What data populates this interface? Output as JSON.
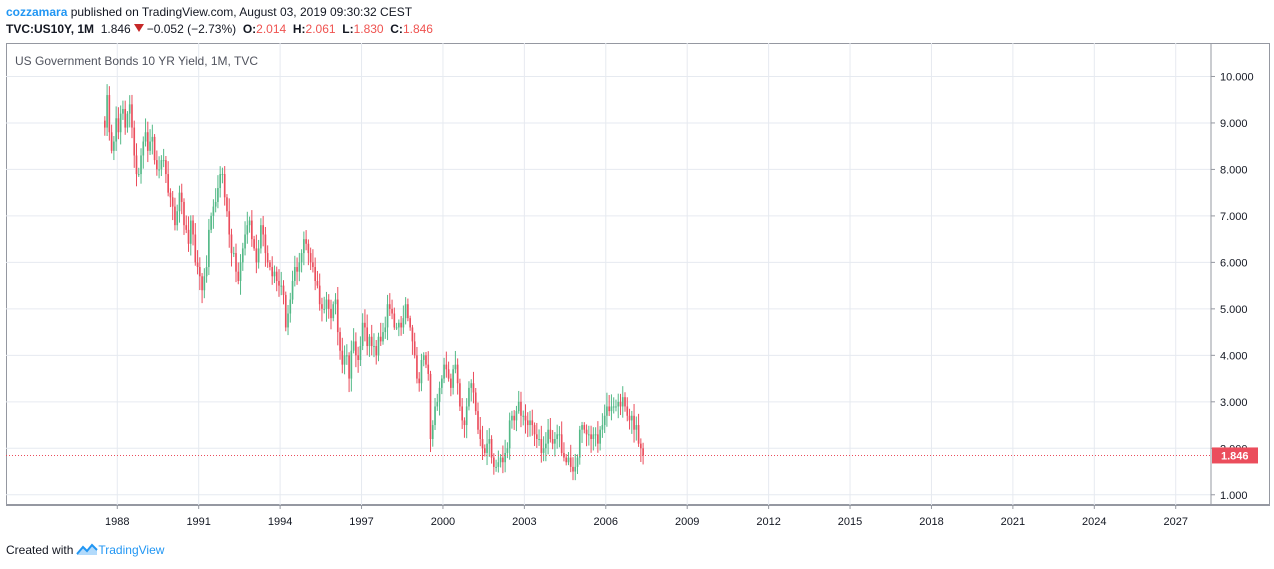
{
  "header": {
    "author": "cozzamara",
    "published_text": " published on TradingView.com, August 03, 2019 09:30:32 CEST",
    "symbol": "TVC:US10Y, 1M",
    "last": "1.846",
    "change": "−0.052 (−2.73%)",
    "o_label": "O:",
    "o_value": "2.014",
    "h_label": "H:",
    "h_value": "2.061",
    "l_label": "L:",
    "l_value": "1.830",
    "c_label": "C:",
    "c_value": "1.846"
  },
  "footer": {
    "created_with": "Created with",
    "brand": "TradingView"
  },
  "colors": {
    "up": "#53b987",
    "down": "#eb4d5c",
    "grid": "#e6eaf0",
    "price_line": "#eb4d5c",
    "brand": "#2196f3"
  },
  "chart_data": {
    "type": "candlestick",
    "title": "US Government Bonds 10 YR Yield, 1M, TVC",
    "xlabel": "",
    "ylabel": "",
    "x_ticks": [
      "1988",
      "1991",
      "1994",
      "1997",
      "2000",
      "2003",
      "2006",
      "2009",
      "2012",
      "2015",
      "2018",
      "2021",
      "2024",
      "2027"
    ],
    "y_ticks": [
      "1.000",
      "2.000",
      "3.000",
      "4.000",
      "5.000",
      "6.000",
      "7.000",
      "8.000",
      "9.000",
      "10.000"
    ],
    "x_range": [
      1983.9,
      2028.3
    ],
    "y_range": [
      0.78,
      10.72
    ],
    "grid": true,
    "current_price": 1.846,
    "current_price_label": "1.846",
    "series": [
      {
        "interval": "1M",
        "start": 1987.5,
        "closes": [
          8.9,
          9.6,
          8.8,
          8.4,
          8.6,
          9.1,
          8.8,
          9.2,
          9.3,
          8.9,
          9.2,
          9.4,
          8.9,
          8.3,
          7.9,
          7.9,
          8.3,
          8.6,
          8.8,
          8.4,
          8.6,
          8.7,
          8.2,
          8.0,
          8.0,
          8.2,
          8.2,
          7.9,
          7.5,
          7.4,
          7.2,
          6.8,
          7.1,
          7.5,
          7.3,
          6.8,
          6.7,
          6.4,
          6.9,
          6.6,
          6.0,
          5.9,
          5.7,
          5.4,
          5.7,
          5.9,
          6.7,
          7.0,
          7.2,
          7.3,
          7.6,
          7.9,
          7.9,
          7.4,
          7.1,
          6.6,
          6.2,
          6.2,
          5.8,
          5.6,
          6.0,
          6.3,
          6.6,
          6.8,
          6.9,
          6.5,
          6.3,
          6.0,
          6.3,
          6.8,
          6.6,
          6.2,
          6.0,
          5.9,
          5.7,
          5.8,
          5.6,
          5.5,
          5.5,
          5.3,
          4.6,
          4.9,
          5.2,
          5.6,
          5.9,
          5.8,
          6.0,
          6.2,
          6.5,
          6.4,
          6.2,
          6.0,
          5.9,
          5.6,
          5.5,
          5.1,
          5.0,
          5.0,
          5.2,
          5.0,
          4.8,
          5.1,
          5.2,
          4.5,
          4.1,
          3.8,
          4.0,
          4.0,
          3.5,
          4.1,
          4.3,
          4.0,
          3.9,
          4.2,
          4.7,
          4.6,
          4.2,
          4.4,
          4.2,
          4.2,
          4.0,
          4.4,
          4.3,
          4.5,
          4.6,
          5.1,
          5.0,
          4.9,
          4.6,
          4.6,
          4.7,
          4.6,
          4.8,
          5.1,
          4.8,
          4.6,
          4.3,
          4.0,
          3.5,
          3.4,
          3.9,
          4.0,
          3.8,
          3.6,
          2.2,
          2.5,
          2.9,
          3.0,
          3.3,
          3.5,
          3.8,
          3.7,
          3.5,
          3.3,
          3.7,
          3.8,
          3.4,
          2.9,
          2.6,
          2.5,
          2.9,
          3.3,
          3.4,
          3.2,
          2.8,
          2.4,
          2.2,
          2.0,
          1.9,
          2.1,
          2.2,
          1.8,
          1.6,
          1.6,
          1.7,
          1.8,
          1.7,
          1.9,
          2.0,
          2.6,
          2.7,
          2.6,
          2.8,
          3.0,
          2.7,
          2.7,
          2.6,
          2.5,
          2.6,
          2.5,
          2.3,
          2.2,
          2.2,
          1.9,
          2.0,
          2.1,
          2.4,
          2.2,
          2.1,
          2.2,
          2.3,
          2.3,
          1.9,
          1.8,
          1.7,
          1.8,
          1.6,
          1.5,
          1.6,
          1.8,
          2.4,
          2.5,
          2.4,
          2.3,
          2.3,
          2.2,
          2.3,
          2.3,
          2.1,
          2.4,
          2.5,
          2.7,
          2.9,
          2.8,
          2.9,
          2.9,
          2.9,
          3.0,
          2.9,
          3.1,
          2.9,
          2.7,
          2.6,
          2.7,
          2.4,
          2.5,
          2.1,
          2.0,
          1.846
        ]
      }
    ]
  }
}
